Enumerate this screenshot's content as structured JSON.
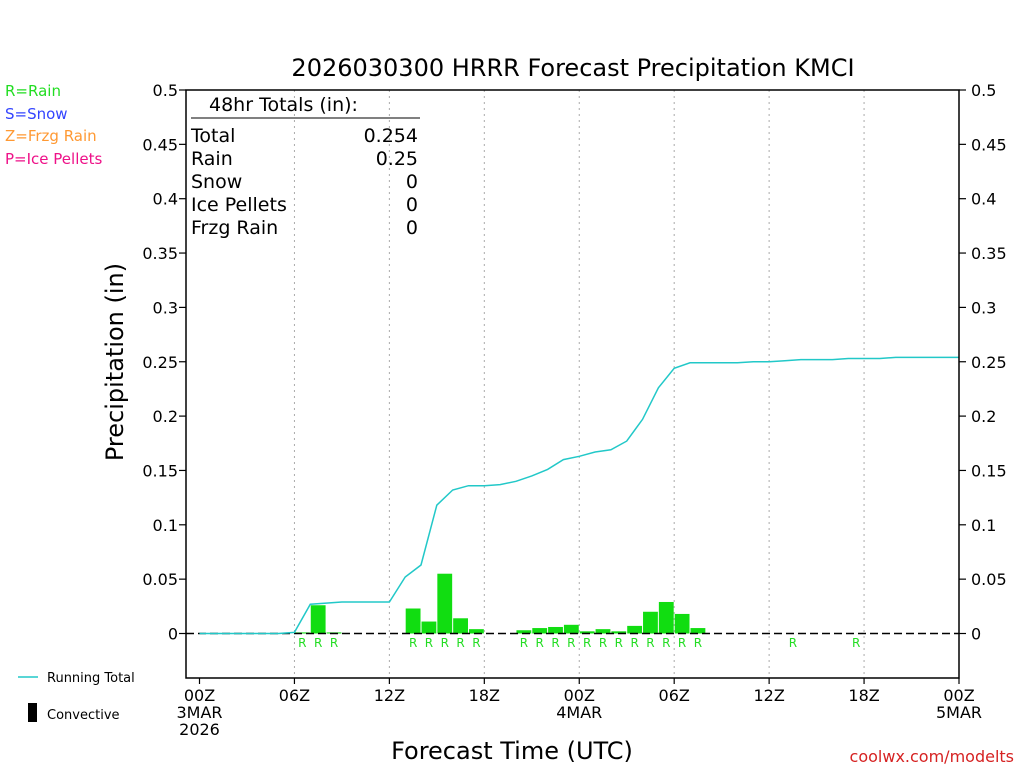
{
  "chart_data": {
    "type": "bar",
    "title": "2026030300 HRRR Forecast Precipitation KMCI",
    "xlabel": "Forecast Time (UTC)",
    "ylabel": "Precipitation (in)",
    "ylim": [
      -0.04,
      0.5
    ],
    "xlim_hours": [
      0,
      48
    ],
    "y_ticks": [
      0,
      0.05,
      0.1,
      0.15,
      0.2,
      0.25,
      0.3,
      0.35,
      0.4,
      0.45,
      0.5
    ],
    "y_tick_labels": [
      "0",
      "0.05",
      "0.1",
      "0.15",
      "0.2",
      "0.25",
      "0.3",
      "0.35",
      "0.4",
      "0.45",
      "0.5"
    ],
    "x_ticks": [
      {
        "hour": 0,
        "lines": [
          "00Z",
          "3MAR",
          "2026"
        ]
      },
      {
        "hour": 6,
        "lines": [
          "06Z"
        ]
      },
      {
        "hour": 12,
        "lines": [
          "12Z"
        ]
      },
      {
        "hour": 18,
        "lines": [
          "18Z"
        ]
      },
      {
        "hour": 24,
        "lines": [
          "00Z",
          "4MAR"
        ]
      },
      {
        "hour": 30,
        "lines": [
          "06Z"
        ]
      },
      {
        "hour": 36,
        "lines": [
          "12Z"
        ]
      },
      {
        "hour": 42,
        "lines": [
          "18Z"
        ]
      },
      {
        "hour": 48,
        "lines": [
          "00Z",
          "5MAR"
        ]
      }
    ],
    "legend_ptype": [
      {
        "label": "R=Rain",
        "color": "#22dd22"
      },
      {
        "label": "S=Snow",
        "color": "#3344ff"
      },
      {
        "label": "Z=Frzg Rain",
        "color": "#ff9933"
      },
      {
        "label": "P=Ice Pellets",
        "color": "#ee1188"
      }
    ],
    "legend_series": [
      {
        "label": "Running Total",
        "color": "#22c8c8",
        "kind": "line"
      },
      {
        "label": "Convective",
        "color": "#000000",
        "kind": "bar"
      }
    ],
    "totals_box": {
      "heading": "48hr Totals (in):",
      "rows": [
        {
          "label": "Total",
          "value": "0.254"
        },
        {
          "label": "Rain",
          "value": "0.25"
        },
        {
          "label": "Snow",
          "value": "0"
        },
        {
          "label": "Ice Pellets",
          "value": "0"
        },
        {
          "label": "Frzg Rain",
          "value": "0"
        }
      ]
    },
    "series": [
      {
        "name": "Hourly Rain",
        "color": "#11dd11",
        "values": [
          0,
          0,
          0,
          0,
          0,
          0,
          0.001,
          0.026,
          0.001,
          0,
          0,
          0,
          0,
          0.023,
          0.011,
          0.055,
          0.014,
          0.004,
          0,
          0,
          0.003,
          0.005,
          0.006,
          0.008,
          0.002,
          0.004,
          0.002,
          0.007,
          0.02,
          0.029,
          0.018,
          0.005,
          0,
          0,
          0,
          0,
          0,
          0,
          0,
          0,
          0,
          0,
          0,
          0,
          0,
          0,
          0,
          0
        ]
      },
      {
        "name": "Running Total",
        "color": "#22c8c8",
        "points": [
          [
            0,
            0
          ],
          [
            1,
            0
          ],
          [
            2,
            0
          ],
          [
            3,
            0
          ],
          [
            4,
            0
          ],
          [
            5,
            0
          ],
          [
            6,
            0.001
          ],
          [
            7,
            0.027
          ],
          [
            8,
            0.028
          ],
          [
            9,
            0.029
          ],
          [
            10,
            0.029
          ],
          [
            11,
            0.029
          ],
          [
            12,
            0.029
          ],
          [
            13,
            0.052
          ],
          [
            14,
            0.063
          ],
          [
            15,
            0.118
          ],
          [
            16,
            0.132
          ],
          [
            17,
            0.136
          ],
          [
            18,
            0.136
          ],
          [
            19,
            0.137
          ],
          [
            20,
            0.14
          ],
          [
            21,
            0.145
          ],
          [
            22,
            0.151
          ],
          [
            23,
            0.16
          ],
          [
            24,
            0.163
          ],
          [
            25,
            0.167
          ],
          [
            26,
            0.169
          ],
          [
            27,
            0.177
          ],
          [
            28,
            0.197
          ],
          [
            29,
            0.226
          ],
          [
            30,
            0.244
          ],
          [
            31,
            0.249
          ],
          [
            32,
            0.249
          ],
          [
            33,
            0.249
          ],
          [
            34,
            0.249
          ],
          [
            35,
            0.25
          ],
          [
            36,
            0.25
          ],
          [
            37,
            0.251
          ],
          [
            38,
            0.252
          ],
          [
            39,
            0.252
          ],
          [
            40,
            0.252
          ],
          [
            41,
            0.253
          ],
          [
            42,
            0.253
          ],
          [
            43,
            0.253
          ],
          [
            44,
            0.254
          ],
          [
            45,
            0.254
          ],
          [
            46,
            0.254
          ],
          [
            47,
            0.254
          ],
          [
            48,
            0.254
          ]
        ]
      }
    ],
    "ptype_markers": {
      "color": "#22dd22",
      "items": [
        {
          "hour": 6,
          "label": "R"
        },
        {
          "hour": 7,
          "label": "R"
        },
        {
          "hour": 8,
          "label": "R"
        },
        {
          "hour": 13,
          "label": "R"
        },
        {
          "hour": 14,
          "label": "R"
        },
        {
          "hour": 15,
          "label": "R"
        },
        {
          "hour": 16,
          "label": "R"
        },
        {
          "hour": 17,
          "label": "R"
        },
        {
          "hour": 20,
          "label": "R"
        },
        {
          "hour": 21,
          "label": "R"
        },
        {
          "hour": 22,
          "label": "R"
        },
        {
          "hour": 23,
          "label": "R"
        },
        {
          "hour": 24,
          "label": "R"
        },
        {
          "hour": 25,
          "label": "R"
        },
        {
          "hour": 26,
          "label": "R"
        },
        {
          "hour": 27,
          "label": "R"
        },
        {
          "hour": 28,
          "label": "R"
        },
        {
          "hour": 29,
          "label": "R"
        },
        {
          "hour": 30,
          "label": "R"
        },
        {
          "hour": 31,
          "label": "R"
        },
        {
          "hour": 37,
          "label": "R"
        },
        {
          "hour": 41,
          "label": "R"
        }
      ]
    },
    "credit": "coolwx.com/modelts",
    "credit_color": "#d62222"
  }
}
